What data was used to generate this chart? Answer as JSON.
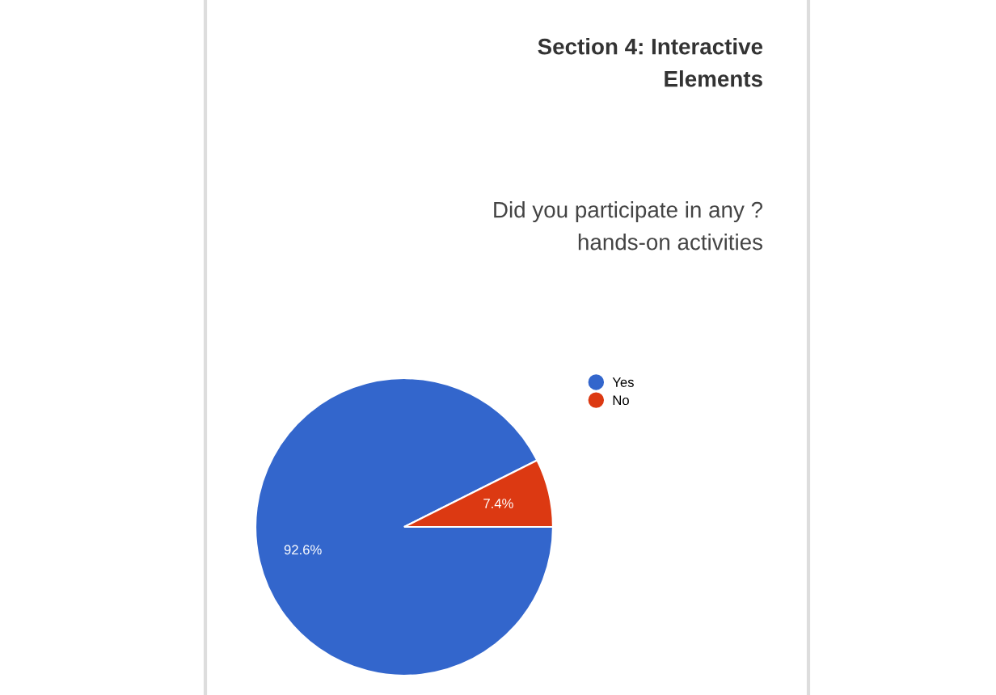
{
  "chart_data": {
    "type": "pie",
    "title": "Section 4: Interactive\nElements",
    "subtitle": "Did you participate in any ?\nhands-on activities",
    "categories": [
      "Yes",
      "No"
    ],
    "values": [
      92.6,
      7.4
    ],
    "colors": [
      "#3366cc",
      "#dc3912"
    ],
    "value_labels": [
      "92.6%",
      "7.4%"
    ],
    "legend": "top right"
  }
}
